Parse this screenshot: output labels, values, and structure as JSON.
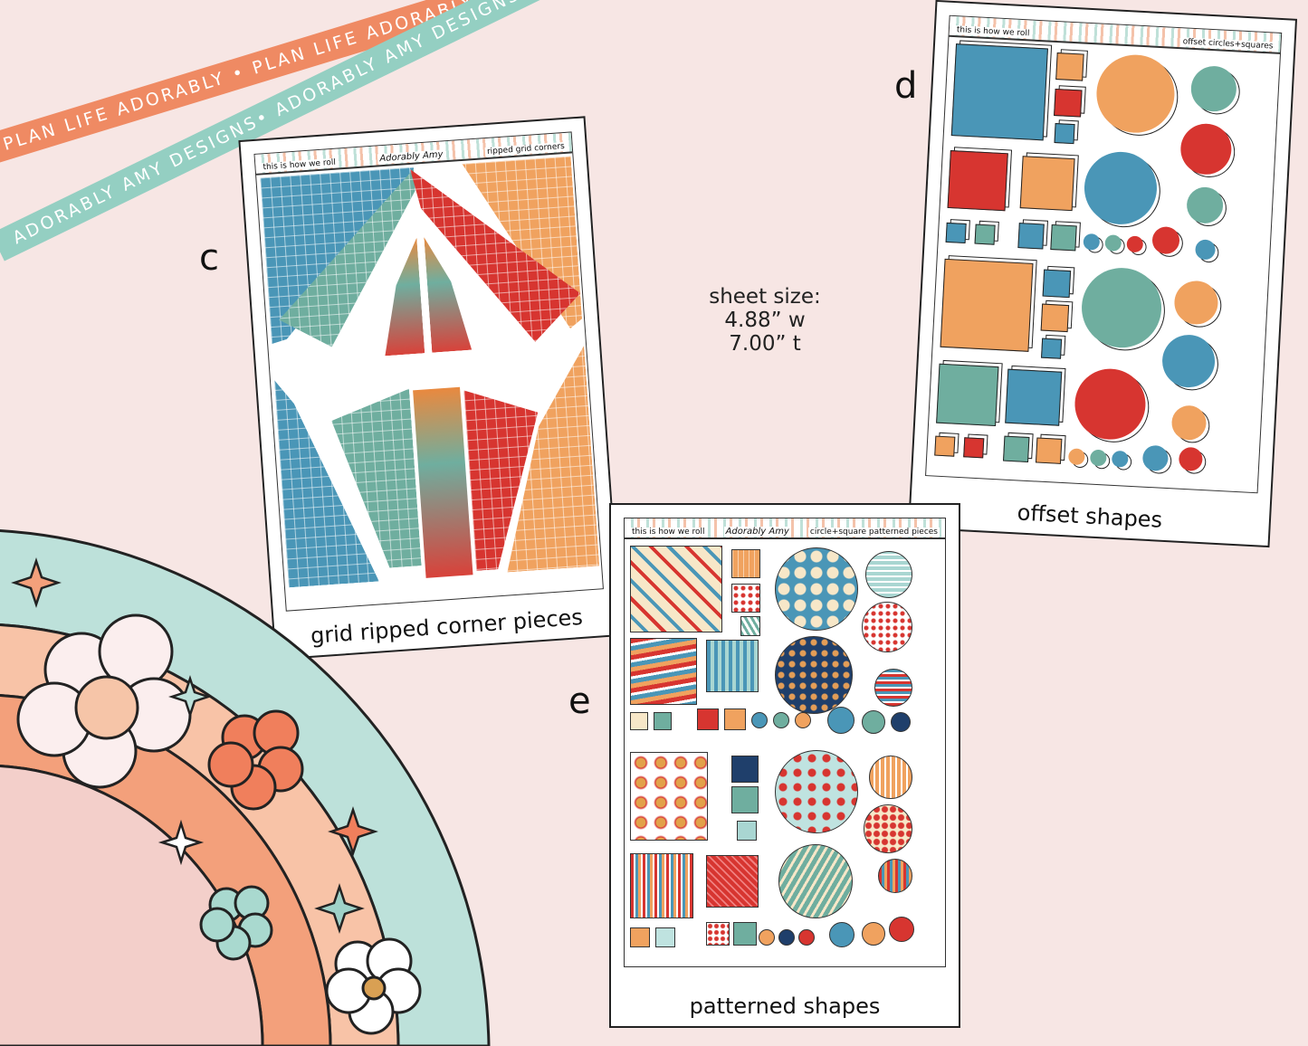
{
  "ribbons": {
    "orange_text": "PLAN LIFE ADORABLY • PLAN LIFE ADORABLY • PLAN LIFE ADORABLY •",
    "teal_text": "ADORABLY AMY DESIGNS• ADORABLY AMY DESIGNS• ADORABLY AMY DESIGNS•"
  },
  "labels": {
    "c": "c",
    "d": "d",
    "e": "e"
  },
  "sheet_size": {
    "line1": "sheet size:",
    "line2": "4.88” w",
    "line3": "7.00” t"
  },
  "sheets": {
    "c": {
      "header_left": "this is how we roll",
      "logo": "Adorably Amy",
      "header_right": "ripped grid corners",
      "caption": "grid ripped corner pieces"
    },
    "d": {
      "header_left": "this is how we roll",
      "header_right": "offset circles+squares",
      "caption": "offset shapes"
    },
    "e": {
      "header_left": "this is how we roll",
      "logo": "Adorably Amy",
      "header_right": "circle+square patterned pieces",
      "caption": "patterned shapes"
    }
  },
  "colors": {
    "blue": "#4a96b7",
    "orange": "#f0a25f",
    "red": "#d73530",
    "teal": "#6fae9f",
    "background": "#f7e6e4"
  }
}
